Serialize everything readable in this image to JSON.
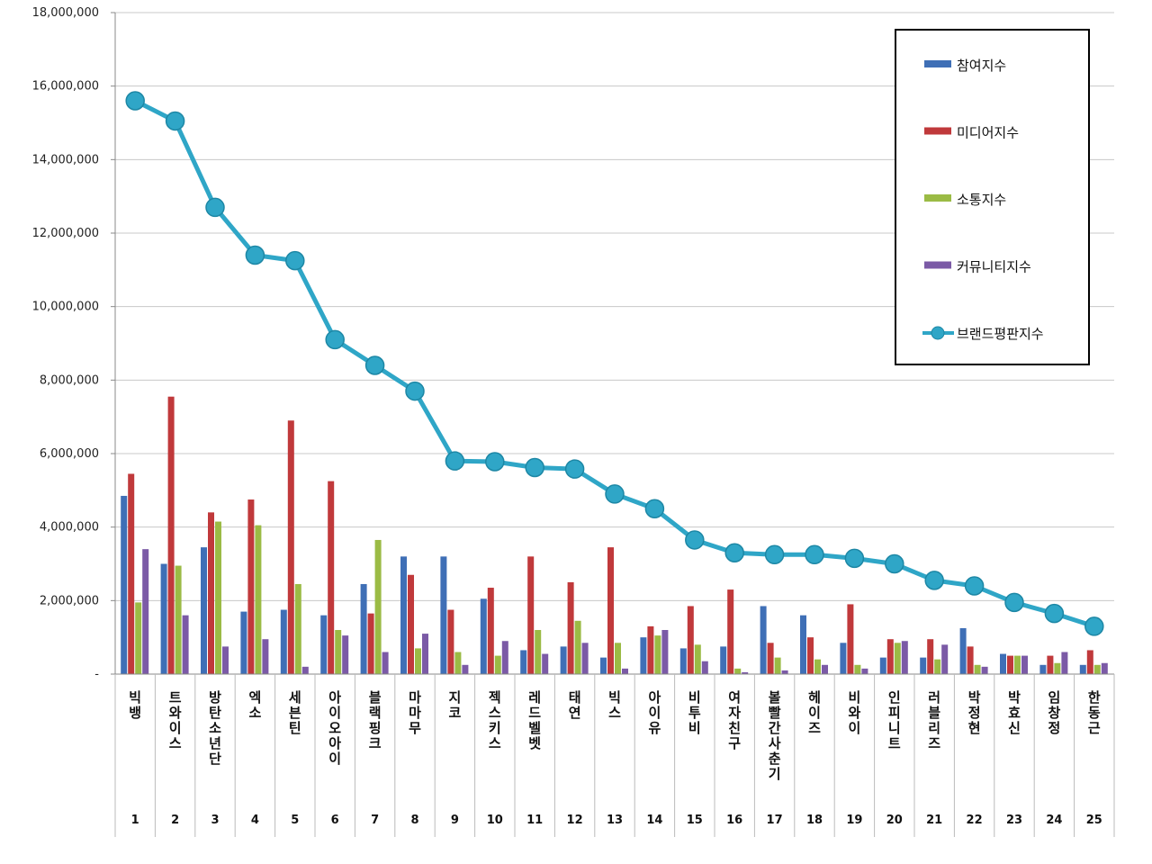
{
  "chart_data": {
    "type": "bar",
    "title": "",
    "xlabel": "",
    "ylabel": "",
    "ylim": [
      0,
      18000000
    ],
    "yticks": [
      "-",
      "2,000,000",
      "4,000,000",
      "6,000,000",
      "8,000,000",
      "10,000,000",
      "12,000,000",
      "14,000,000",
      "16,000,000",
      "18,000,000"
    ],
    "grid": true,
    "legend_position": "top-right",
    "categories": [
      "빅뱅",
      "트와이스",
      "방탄소년단",
      "엑소",
      "세븐틴",
      "아이오아이",
      "블랙핑크",
      "마마무",
      "지코",
      "젝스키스",
      "레드벨벳",
      "태연",
      "빅스",
      "아이유",
      "비투비",
      "여자친구",
      "볼빨간사춘기",
      "헤이즈",
      "비와이",
      "인피니트",
      "러블리즈",
      "박정현",
      "박효신",
      "임창정",
      "한동근"
    ],
    "ranks": [
      "1",
      "2",
      "3",
      "4",
      "5",
      "6",
      "7",
      "8",
      "9",
      "10",
      "11",
      "12",
      "13",
      "14",
      "15",
      "16",
      "17",
      "18",
      "19",
      "20",
      "21",
      "22",
      "23",
      "24",
      "25"
    ],
    "series": [
      {
        "name": "참여지수",
        "type": "bar",
        "color": "#3f6fb6",
        "values": [
          4850000,
          3000000,
          3450000,
          1700000,
          1750000,
          1600000,
          2450000,
          3200000,
          3200000,
          2050000,
          650000,
          750000,
          450000,
          1000000,
          700000,
          750000,
          1850000,
          1600000,
          850000,
          450000,
          450000,
          1250000,
          550000,
          250000,
          250000
        ]
      },
      {
        "name": "미디어지수",
        "type": "bar",
        "color": "#c0393b",
        "values": [
          5450000,
          7550000,
          4400000,
          4750000,
          6900000,
          5250000,
          1650000,
          2700000,
          1750000,
          2350000,
          3200000,
          2500000,
          3450000,
          1300000,
          1850000,
          2300000,
          850000,
          1000000,
          1900000,
          950000,
          950000,
          750000,
          500000,
          500000,
          650000
        ]
      },
      {
        "name": "소통지수",
        "type": "bar",
        "color": "#9bbb45",
        "values": [
          1950000,
          2950000,
          4150000,
          4050000,
          2450000,
          1200000,
          3650000,
          700000,
          600000,
          500000,
          1200000,
          1450000,
          850000,
          1050000,
          800000,
          150000,
          450000,
          400000,
          250000,
          850000,
          400000,
          250000,
          500000,
          300000,
          250000
        ]
      },
      {
        "name": "커뮤니티지수",
        "type": "bar",
        "color": "#7b5aa6",
        "values": [
          3400000,
          1600000,
          750000,
          950000,
          200000,
          1050000,
          600000,
          1100000,
          250000,
          900000,
          550000,
          850000,
          150000,
          1200000,
          350000,
          50000,
          100000,
          250000,
          150000,
          900000,
          800000,
          200000,
          500000,
          600000,
          300000
        ]
      },
      {
        "name": "브랜드평판지수",
        "type": "line",
        "color": "#2fa6c7",
        "values": [
          15600000,
          15050000,
          12700000,
          11400000,
          11250000,
          9100000,
          8400000,
          7700000,
          5800000,
          5780000,
          5620000,
          5580000,
          4900000,
          4500000,
          3650000,
          3300000,
          3250000,
          3250000,
          3150000,
          3000000,
          2550000,
          2400000,
          1950000,
          1650000,
          1300000
        ]
      }
    ]
  }
}
